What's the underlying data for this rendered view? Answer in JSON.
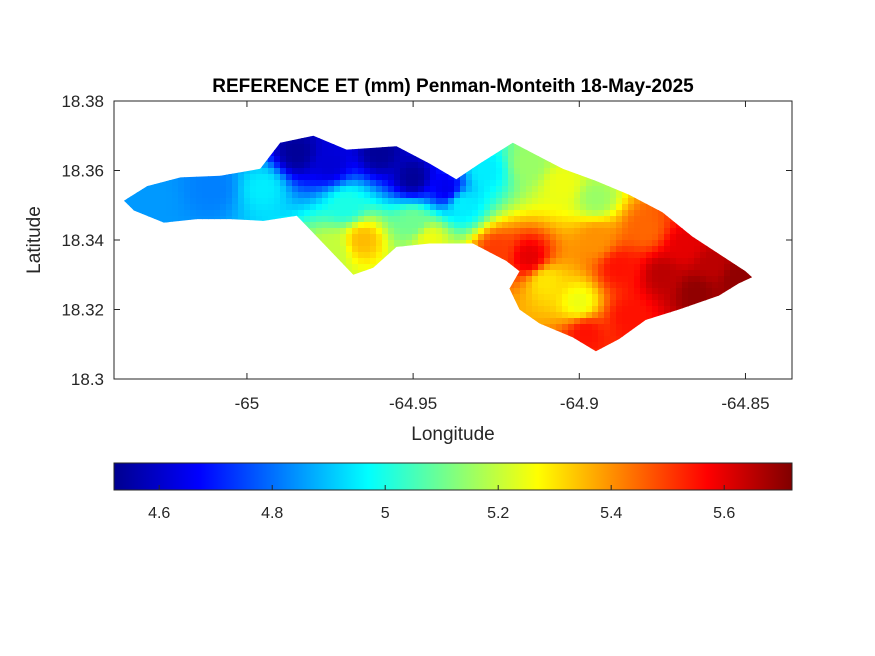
{
  "chart_data": {
    "type": "heatmap",
    "title": "REFERENCE ET (mm) Penman-Monteith 18-May-2025",
    "xlabel": "Longitude",
    "ylabel": "Latitude",
    "xlim": [
      -65.04,
      -64.836
    ],
    "ylim": [
      18.3,
      18.38
    ],
    "xticks": [
      -65,
      -64.95,
      -64.9,
      -64.85
    ],
    "xtick_labels": [
      "-65",
      "-64.95",
      "-64.9",
      "-64.85"
    ],
    "yticks": [
      18.3,
      18.32,
      18.34,
      18.36,
      18.38
    ],
    "ytick_labels": [
      "18.3",
      "18.32",
      "18.34",
      "18.36",
      "18.38"
    ],
    "colormap": "jet",
    "colorbar": {
      "location": "below",
      "range": [
        4.52,
        5.72
      ],
      "ticks": [
        4.6,
        4.8,
        5.0,
        5.2,
        5.4,
        5.6
      ],
      "tick_labels": [
        "4.6",
        "4.8",
        "5",
        "5.2",
        "5.4",
        "5.6"
      ]
    },
    "island_outline": [
      [
        -65.037,
        18.3513
      ],
      [
        -65.03,
        18.3555
      ],
      [
        -65.02,
        18.358
      ],
      [
        -65.008,
        18.3585
      ],
      [
        -64.996,
        18.3605
      ],
      [
        -64.99,
        18.368
      ],
      [
        -64.98,
        18.37
      ],
      [
        -64.97,
        18.366
      ],
      [
        -64.955,
        18.367
      ],
      [
        -64.945,
        18.362
      ],
      [
        -64.937,
        18.3575
      ],
      [
        -64.93,
        18.362
      ],
      [
        -64.92,
        18.368
      ],
      [
        -64.912,
        18.364
      ],
      [
        -64.905,
        18.3605
      ],
      [
        -64.895,
        18.357
      ],
      [
        -64.885,
        18.353
      ],
      [
        -64.875,
        18.348
      ],
      [
        -64.866,
        18.341
      ],
      [
        -64.858,
        18.336
      ],
      [
        -64.85,
        18.331
      ],
      [
        -64.848,
        18.3293
      ],
      [
        -64.852,
        18.3275
      ],
      [
        -64.858,
        18.324
      ],
      [
        -64.87,
        18.32
      ],
      [
        -64.88,
        18.317
      ],
      [
        -64.888,
        18.3115
      ],
      [
        -64.895,
        18.308
      ],
      [
        -64.902,
        18.312
      ],
      [
        -64.912,
        18.316
      ],
      [
        -64.918,
        18.32
      ],
      [
        -64.921,
        18.326
      ],
      [
        -64.918,
        18.331
      ],
      [
        -64.922,
        18.334
      ],
      [
        -64.932,
        18.339
      ],
      [
        -64.945,
        18.339
      ],
      [
        -64.955,
        18.338
      ],
      [
        -64.962,
        18.332
      ],
      [
        -64.968,
        18.33
      ],
      [
        -64.975,
        18.337
      ],
      [
        -64.985,
        18.347
      ],
      [
        -64.995,
        18.3455
      ],
      [
        -65.005,
        18.346
      ],
      [
        -65.015,
        18.346
      ],
      [
        -65.025,
        18.345
      ],
      [
        -65.034,
        18.3485
      ]
    ],
    "value_field": [
      {
        "lon": -65.03,
        "lat": 18.352,
        "v": 4.85
      },
      {
        "lon": -65.01,
        "lat": 18.355,
        "v": 4.82
      },
      {
        "lon": -64.995,
        "lat": 18.355,
        "v": 4.95
      },
      {
        "lon": -64.985,
        "lat": 18.365,
        "v": 4.55
      },
      {
        "lon": -64.975,
        "lat": 18.362,
        "v": 4.62
      },
      {
        "lon": -64.96,
        "lat": 18.365,
        "v": 4.55
      },
      {
        "lon": -64.95,
        "lat": 18.358,
        "v": 4.55
      },
      {
        "lon": -64.94,
        "lat": 18.355,
        "v": 4.65
      },
      {
        "lon": -64.928,
        "lat": 18.36,
        "v": 4.95
      },
      {
        "lon": -64.915,
        "lat": 18.362,
        "v": 5.15
      },
      {
        "lon": -64.905,
        "lat": 18.356,
        "v": 5.25
      },
      {
        "lon": -64.895,
        "lat": 18.352,
        "v": 5.15
      },
      {
        "lon": -64.97,
        "lat": 18.35,
        "v": 5.0
      },
      {
        "lon": -64.95,
        "lat": 18.345,
        "v": 5.1
      },
      {
        "lon": -64.965,
        "lat": 18.34,
        "v": 5.35
      },
      {
        "lon": -64.975,
        "lat": 18.337,
        "v": 5.2
      },
      {
        "lon": -64.945,
        "lat": 18.34,
        "v": 5.25
      },
      {
        "lon": -64.925,
        "lat": 18.337,
        "v": 5.5
      },
      {
        "lon": -64.915,
        "lat": 18.335,
        "v": 5.6
      },
      {
        "lon": -64.91,
        "lat": 18.328,
        "v": 5.3
      },
      {
        "lon": -64.9,
        "lat": 18.322,
        "v": 5.25
      },
      {
        "lon": -64.895,
        "lat": 18.34,
        "v": 5.4
      },
      {
        "lon": -64.888,
        "lat": 18.332,
        "v": 5.55
      },
      {
        "lon": -64.88,
        "lat": 18.343,
        "v": 5.45
      },
      {
        "lon": -64.875,
        "lat": 18.33,
        "v": 5.65
      },
      {
        "lon": -64.868,
        "lat": 18.338,
        "v": 5.6
      },
      {
        "lon": -64.86,
        "lat": 18.333,
        "v": 5.65
      },
      {
        "lon": -64.865,
        "lat": 18.325,
        "v": 5.7
      },
      {
        "lon": -64.852,
        "lat": 18.329,
        "v": 5.7
      },
      {
        "lon": -64.885,
        "lat": 18.318,
        "v": 5.55
      },
      {
        "lon": -64.898,
        "lat": 18.313,
        "v": 5.55
      },
      {
        "lon": -64.935,
        "lat": 18.35,
        "v": 4.95
      }
    ],
    "grid": false
  }
}
